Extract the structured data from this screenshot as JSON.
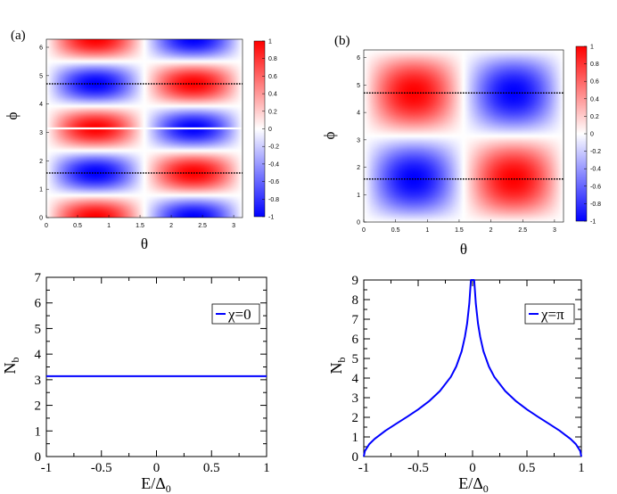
{
  "panel_labels": {
    "a": "(a)",
    "b": "(b)"
  },
  "chart_data": [
    {
      "id": "heatmap_a",
      "type": "heatmap",
      "xlabel": "θ",
      "ylabel": "ϕ",
      "xlim": [
        0,
        3.14159
      ],
      "ylim": [
        0,
        6.28318
      ],
      "xticks": [
        "0",
        "0.5",
        "1",
        "1.5",
        "2",
        "2.5",
        "3"
      ],
      "xtick_values": [
        0,
        0.5,
        1,
        1.5,
        2,
        2.5,
        3
      ],
      "yticks": [
        "0",
        "1",
        "2",
        "3",
        "4",
        "5",
        "6"
      ],
      "ytick_values": [
        0,
        1,
        2,
        3,
        4,
        5,
        6
      ],
      "colorbar": {
        "range": [
          -1,
          1
        ],
        "ticks": [
          "1",
          "0.8",
          "0.6",
          "0.4",
          "0.2",
          "0",
          "-0.2",
          "-0.4",
          "-0.6",
          "-0.8",
          "-1"
        ],
        "tick_values": [
          1,
          0.8,
          0.6,
          0.4,
          0.2,
          0,
          -0.2,
          -0.4,
          -0.6,
          -0.8,
          -1
        ],
        "colors": {
          "low": "#0000ff",
          "mid": "#ffffff",
          "high": "#ff0000"
        }
      },
      "field": "sin(2θ)·cos(2ϕ)",
      "dotted_lines_y": [
        1.5708,
        4.7124
      ],
      "solid_lines_y": [
        3.1416
      ]
    },
    {
      "id": "heatmap_b",
      "type": "heatmap",
      "xlabel": "θ",
      "ylabel": "ϕ",
      "xlim": [
        0,
        3.14159
      ],
      "ylim": [
        0,
        6.28318
      ],
      "xticks": [
        "0",
        "0.5",
        "1",
        "1.5",
        "2",
        "2.5",
        "3"
      ],
      "xtick_values": [
        0,
        0.5,
        1,
        1.5,
        2,
        2.5,
        3
      ],
      "yticks": [
        "0",
        "1",
        "2",
        "3",
        "4",
        "5",
        "6"
      ],
      "ytick_values": [
        0,
        1,
        2,
        3,
        4,
        5,
        6
      ],
      "colorbar": {
        "range": [
          -1,
          1
        ],
        "ticks": [
          "1",
          "0.8",
          "0.6",
          "0.4",
          "0.2",
          "0",
          "-0.2",
          "-0.4",
          "-0.6",
          "-0.8",
          "-1"
        ],
        "tick_values": [
          1,
          0.8,
          0.6,
          0.4,
          0.2,
          0,
          -0.2,
          -0.4,
          -0.6,
          -0.8,
          -1
        ],
        "colors": {
          "low": "#0000ff",
          "mid": "#ffffff",
          "high": "#ff0000"
        }
      },
      "field": "-sin(2θ)·sin(ϕ)",
      "dotted_lines_y": [
        1.5708,
        4.7124
      ],
      "solid_lines_y": []
    },
    {
      "id": "line_a",
      "type": "line",
      "xlabel_main": "E/Δ",
      "xlabel_sub": "0",
      "ylabel_main": "N",
      "ylabel_sub": "b",
      "xlim": [
        -1,
        1
      ],
      "ylim": [
        0,
        7
      ],
      "xticks": [
        "-1",
        "-0.5",
        "0",
        "0.5",
        "1"
      ],
      "xtick_values": [
        -1,
        -0.5,
        0,
        0.5,
        1
      ],
      "yticks": [
        "0",
        "1",
        "2",
        "3",
        "4",
        "5",
        "6",
        "7"
      ],
      "ytick_values": [
        0,
        1,
        2,
        3,
        4,
        5,
        6,
        7
      ],
      "series": [
        {
          "name": "χ=0",
          "color": "#0000ff",
          "x": [
            -1,
            -0.5,
            0,
            0.5,
            1
          ],
          "y": [
            3.14,
            3.14,
            3.14,
            3.14,
            3.14
          ]
        }
      ],
      "legend": "top-right"
    },
    {
      "id": "line_b",
      "type": "line",
      "xlabel_main": "E/Δ",
      "xlabel_sub": "0",
      "ylabel_main": "N",
      "ylabel_sub": "b",
      "xlim": [
        -1,
        1
      ],
      "ylim": [
        0,
        9
      ],
      "xticks": [
        "-1",
        "-0.5",
        "0",
        "0.5",
        "1"
      ],
      "xtick_values": [
        -1,
        -0.5,
        0,
        0.5,
        1
      ],
      "yticks": [
        "0",
        "1",
        "2",
        "3",
        "4",
        "5",
        "6",
        "7",
        "8",
        "9"
      ],
      "ytick_values": [
        0,
        1,
        2,
        3,
        4,
        5,
        6,
        7,
        8,
        9
      ],
      "series": [
        {
          "name": "χ=π",
          "color": "#0000ff",
          "x": [
            -1,
            -0.99,
            -0.95,
            -0.9,
            -0.8,
            -0.7,
            -0.6,
            -0.5,
            -0.4,
            -0.3,
            -0.2,
            -0.15,
            -0.1,
            -0.07,
            -0.05,
            -0.03,
            -0.02,
            -0.015,
            0.015,
            0.02,
            0.03,
            0.05,
            0.07,
            0.1,
            0.15,
            0.2,
            0.3,
            0.4,
            0.5,
            0.6,
            0.7,
            0.8,
            0.9,
            0.95,
            0.99,
            1
          ],
          "y": [
            0,
            0.28,
            0.63,
            0.9,
            1.32,
            1.68,
            2.03,
            2.4,
            2.82,
            3.34,
            4.06,
            4.59,
            5.37,
            6.11,
            6.78,
            7.8,
            8.6,
            9.0,
            9.0,
            8.6,
            7.8,
            6.78,
            6.11,
            5.37,
            4.59,
            4.06,
            3.34,
            2.82,
            2.4,
            2.03,
            1.68,
            1.32,
            0.9,
            0.63,
            0.28,
            0
          ]
        }
      ],
      "legend": "top-right"
    }
  ]
}
